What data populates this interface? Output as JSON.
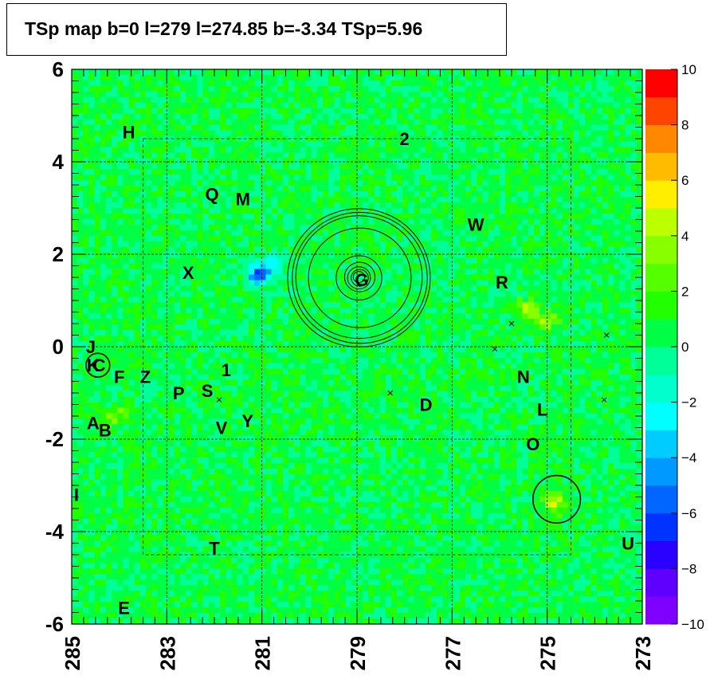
{
  "title": "TSp map b=0 l=279 l=274.85 b=-3.34 TSp=5.96",
  "chart_data": {
    "type": "heatmap",
    "title": "TSp map b=0 l=279 l=274.85 b=-3.34 TSp=5.96",
    "xlabel": "",
    "ylabel": "",
    "xlim": [
      285,
      273
    ],
    "ylim": [
      -6,
      6
    ],
    "x_ticks": [
      "285",
      "283",
      "281",
      "279",
      "277",
      "275",
      "273"
    ],
    "y_ticks": [
      "6",
      "4",
      "2",
      "0",
      "-2",
      "-4",
      "-6"
    ],
    "z_range": [
      -10,
      10
    ],
    "z_ticks": [
      "10",
      "8",
      "6",
      "4",
      "2",
      "0",
      "−2",
      "−4",
      "−6",
      "−8",
      "−10"
    ],
    "background_value": 0.5,
    "grid": true,
    "dashed_inner_box": {
      "l": [
        283.5,
        274.5
      ],
      "b": [
        -4.5,
        4.5
      ]
    },
    "hotspots": [
      {
        "l": 281.1,
        "b": 1.55,
        "value": -7
      },
      {
        "l": 280.8,
        "b": 1.7,
        "value": -4
      },
      {
        "l": 283.9,
        "b": -1.4,
        "value": 3
      },
      {
        "l": 284.2,
        "b": -1.6,
        "value": 3
      },
      {
        "l": 274.85,
        "b": -3.34,
        "value": 5.96
      },
      {
        "l": 275.0,
        "b": 0.55,
        "value": 4
      },
      {
        "l": 275.4,
        "b": 0.8,
        "value": 5
      }
    ],
    "sources": [
      {
        "label": "H",
        "l": 283.8,
        "b": 4.65
      },
      {
        "label": "2",
        "l": 278.0,
        "b": 4.5
      },
      {
        "label": "Q",
        "l": 282.05,
        "b": 3.3
      },
      {
        "label": "M",
        "l": 281.4,
        "b": 3.2
      },
      {
        "label": "W",
        "l": 276.5,
        "b": 2.65
      },
      {
        "label": "X",
        "l": 282.55,
        "b": 1.6
      },
      {
        "label": "G",
        "l": 278.9,
        "b": 1.45
      },
      {
        "label": "R",
        "l": 275.95,
        "b": 1.4
      },
      {
        "label": "J",
        "l": 284.6,
        "b": 0.0
      },
      {
        "label": "K",
        "l": 284.55,
        "b": -0.4
      },
      {
        "label": "C",
        "l": 284.42,
        "b": -0.4
      },
      {
        "label": "F",
        "l": 284.0,
        "b": -0.65
      },
      {
        "label": "Z",
        "l": 283.45,
        "b": -0.65
      },
      {
        "label": "1",
        "l": 281.75,
        "b": -0.5
      },
      {
        "label": "N",
        "l": 275.5,
        "b": -0.65
      },
      {
        "label": "P",
        "l": 282.75,
        "b": -1.0
      },
      {
        "label": "S",
        "l": 282.15,
        "b": -0.95
      },
      {
        "label": "D",
        "l": 277.55,
        "b": -1.25
      },
      {
        "label": "L",
        "l": 275.1,
        "b": -1.35
      },
      {
        "label": "A",
        "l": 284.55,
        "b": -1.65
      },
      {
        "label": "B",
        "l": 284.3,
        "b": -1.8
      },
      {
        "label": "Y",
        "l": 281.3,
        "b": -1.6
      },
      {
        "label": "V",
        "l": 281.85,
        "b": -1.75
      },
      {
        "label": "O",
        "l": 275.3,
        "b": -2.1
      },
      {
        "label": "I",
        "l": 284.9,
        "b": -3.2
      },
      {
        "label": "T",
        "l": 282.0,
        "b": -4.35
      },
      {
        "label": "U",
        "l": 273.3,
        "b": -4.25
      },
      {
        "label": "E",
        "l": 283.9,
        "b": -5.65
      }
    ],
    "markers": [
      {
        "l": 281.9,
        "b": -1.15
      },
      {
        "l": 278.3,
        "b": -1.0
      },
      {
        "l": 276.1,
        "b": -0.05
      },
      {
        "l": 275.75,
        "b": 0.5
      },
      {
        "l": 273.75,
        "b": 0.25
      },
      {
        "l": 273.8,
        "b": -1.15
      }
    ],
    "circles": [
      {
        "l": 284.45,
        "b": -0.4,
        "radius_deg": 0.25
      },
      {
        "l": 274.8,
        "b": -3.3,
        "radius_deg": 0.5
      }
    ],
    "contour_center": {
      "l": 278.95,
      "b": 1.5
    },
    "contour_radii_deg": [
      0.12,
      0.18,
      0.24,
      0.32,
      0.48,
      1.08,
      1.33,
      1.42,
      1.5
    ]
  }
}
